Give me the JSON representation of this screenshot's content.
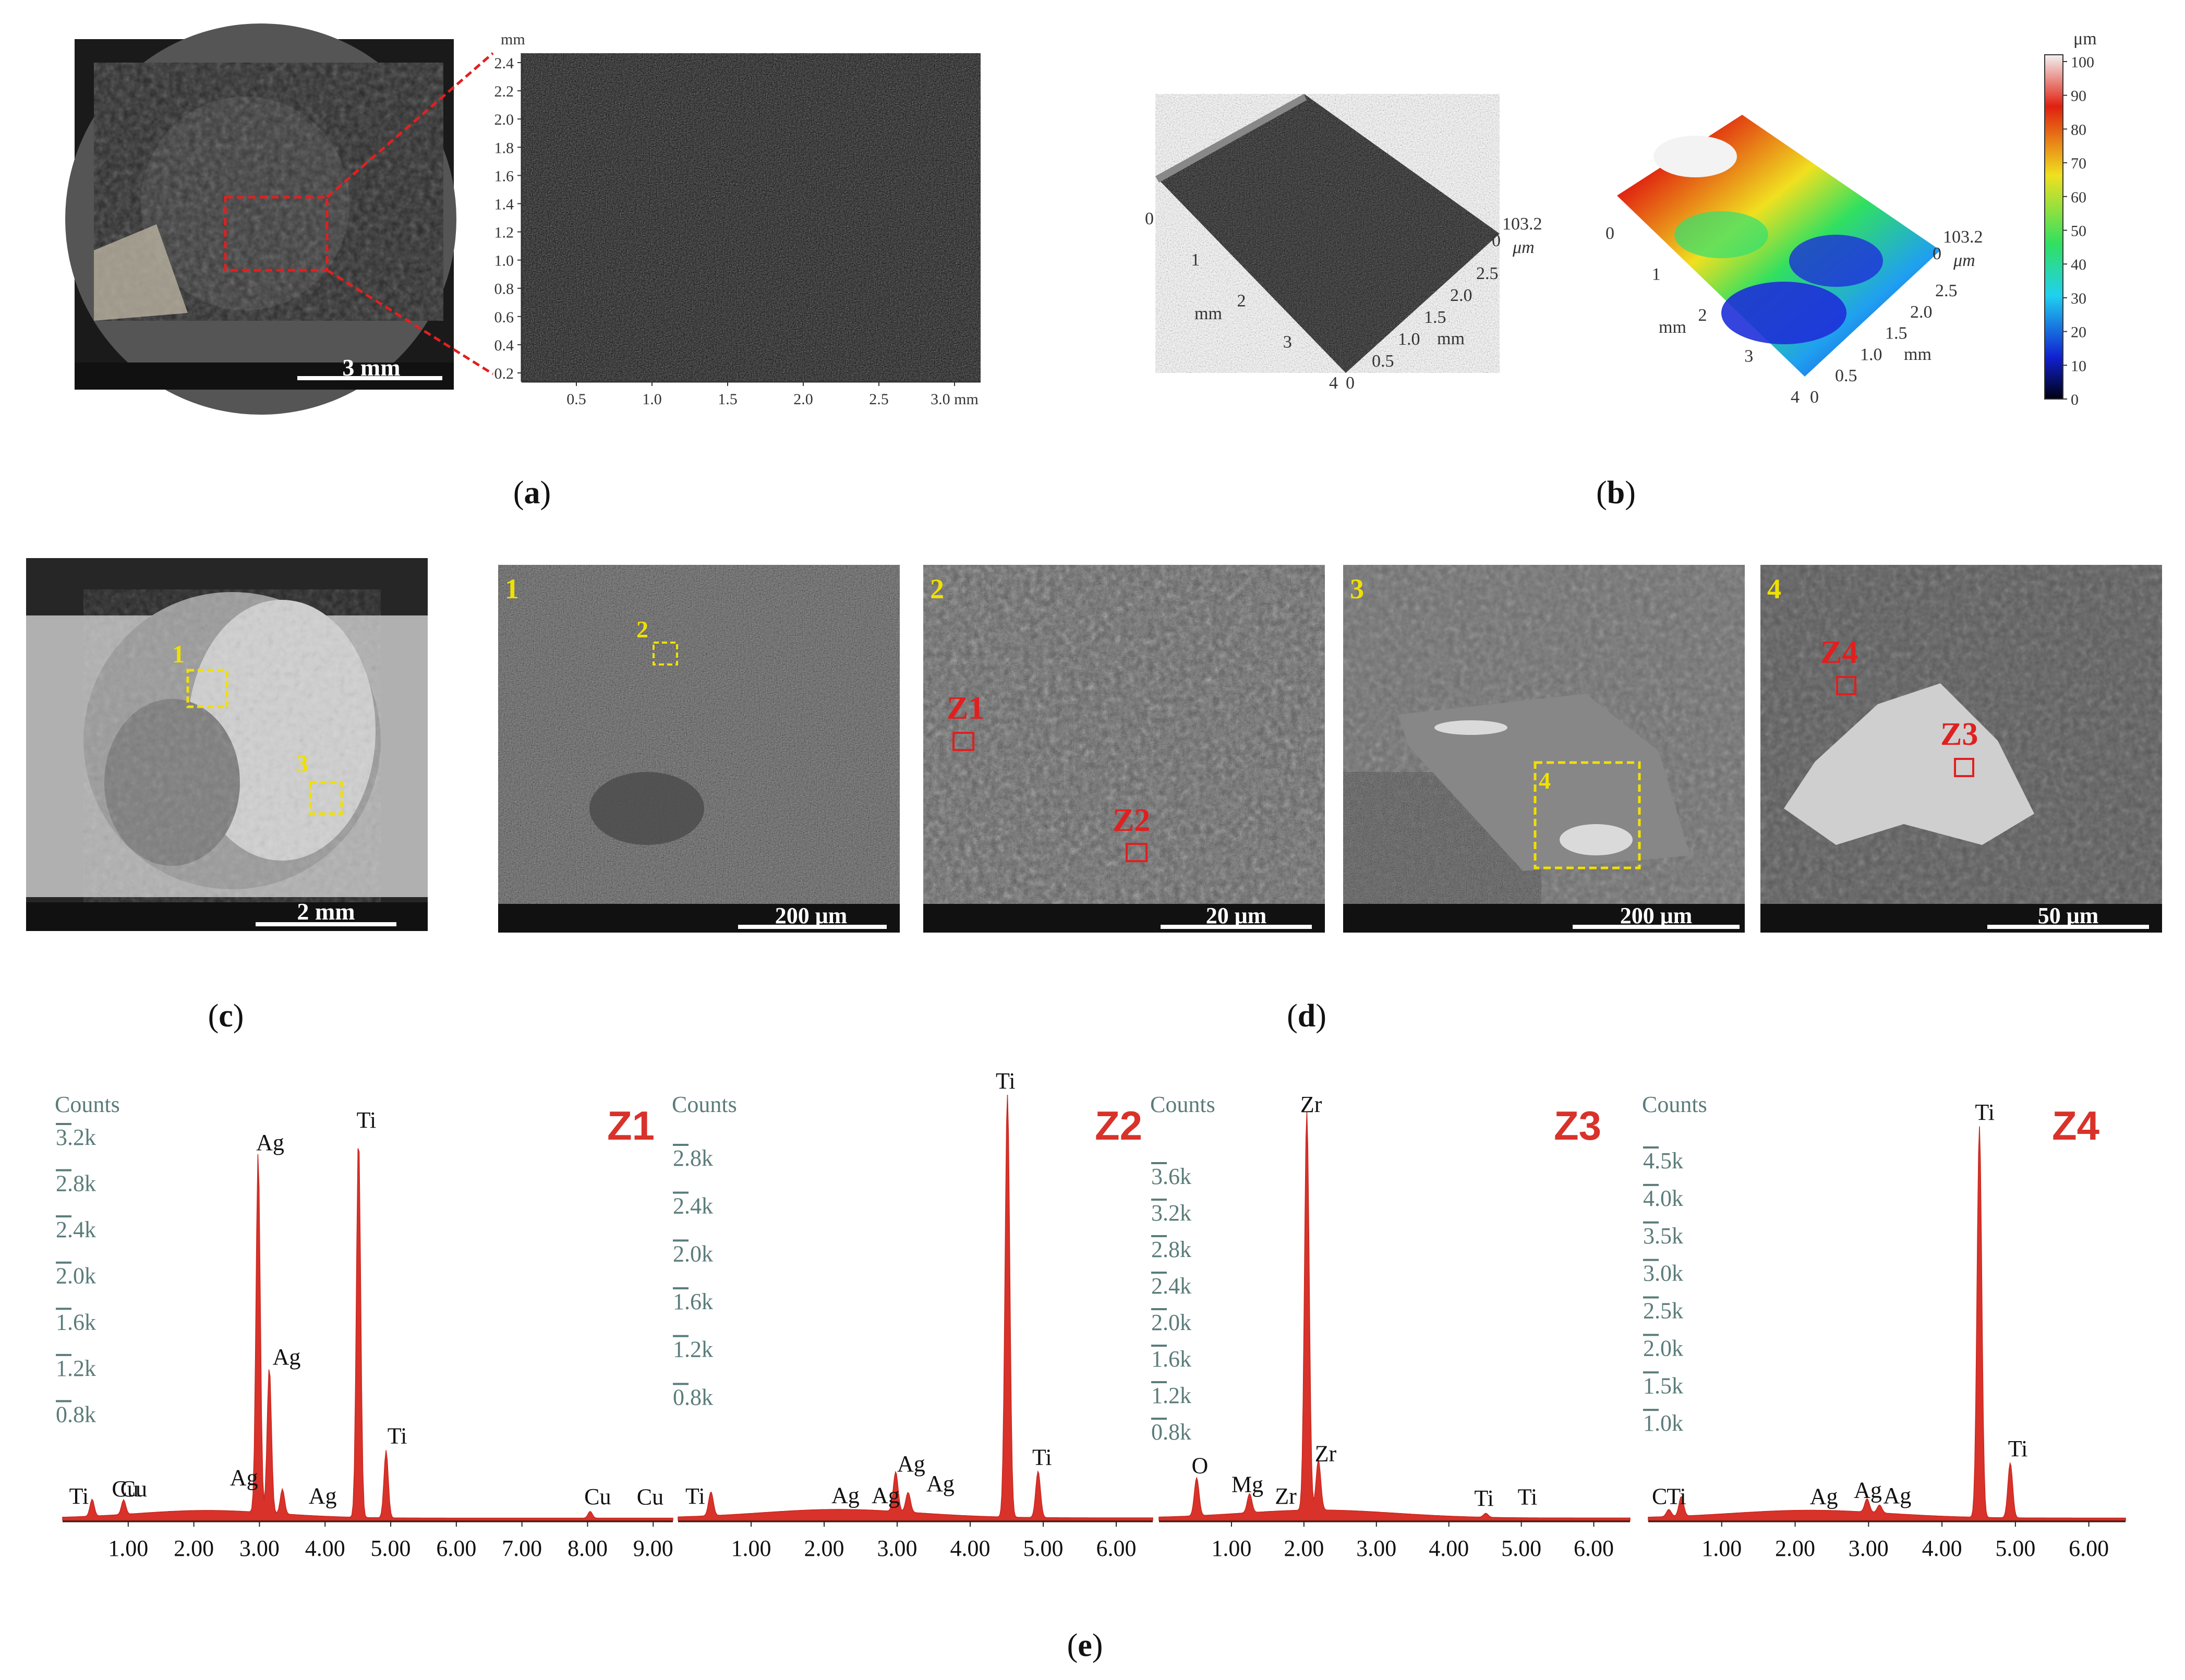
{
  "captions": {
    "a": "a",
    "b": "b",
    "c": "c",
    "d": "d",
    "e": "e"
  },
  "panel_a": {
    "photo_scale": "3 mm",
    "profile_y_unit": "mm",
    "profile_y_ticks": [
      "2.4",
      "2.2",
      "2.0",
      "1.8",
      "1.6",
      "1.4",
      "1.2",
      "1.0",
      "0.8",
      "0.6",
      "0.4",
      "0.2"
    ],
    "profile_x_ticks": [
      "0.5",
      "1.0",
      "1.5",
      "2.0",
      "2.5",
      "3.0 mm"
    ]
  },
  "panel_b": {
    "height_max": "103.2",
    "height_unit": "μm",
    "length_ticks": [
      "0",
      "1",
      "2",
      "3",
      "4"
    ],
    "length_unit": "mm",
    "width_ticks": [
      "0",
      "0.5",
      "1.0",
      "1.5",
      "2.0",
      "2.5"
    ],
    "width_unit": "mm",
    "colorbar_unit": "μm",
    "colorbar_ticks": [
      "100",
      "90",
      "80",
      "70",
      "60",
      "50",
      "40",
      "30",
      "20",
      "10",
      "0"
    ],
    "colors": {
      "high": "#f2f2f2",
      "red": "#e02010",
      "yellow": "#f0e020",
      "green": "#30e060",
      "cyan": "#20d0f0",
      "blue": "#1020d0",
      "low": "#000010"
    }
  },
  "panel_c": {
    "scale": "2 mm",
    "markers": [
      "1",
      "3"
    ]
  },
  "panel_d": {
    "images": [
      {
        "number": "1",
        "scale": "200 μm",
        "marker": "2"
      },
      {
        "number": "2",
        "scale": "20 μm",
        "zones": [
          "Z1",
          "Z2"
        ]
      },
      {
        "number": "3",
        "scale": "200 μm",
        "marker": "4"
      },
      {
        "number": "4",
        "scale": "50 μm",
        "zones": [
          "Z4",
          "Z3"
        ]
      }
    ]
  },
  "chart_data": [
    {
      "type": "line",
      "title": "Z1",
      "ylabel": "Counts",
      "y_ticks": [
        "3.2k",
        "2.8k",
        "2.4k",
        "2.0k",
        "1.6k",
        "1.2k",
        "0.8k"
      ],
      "x_ticks": [
        "1.00",
        "2.00",
        "3.00",
        "4.00",
        "5.00",
        "6.00",
        "7.00",
        "8.00",
        "9.00"
      ],
      "xlim": [
        0,
        9.3
      ],
      "peaks": [
        {
          "label": "Ti",
          "energy": 0.45,
          "counts": 150
        },
        {
          "label": "Cu",
          "energy": 0.93,
          "counts": 130
        },
        {
          "label": "Ag",
          "energy": 2.98,
          "counts": 3200
        },
        {
          "label": "Ag",
          "energy": 3.15,
          "counts": 1300
        },
        {
          "label": "Ag",
          "energy": 3.35,
          "counts": 220
        },
        {
          "label": "Ti",
          "energy": 4.51,
          "counts": 3400
        },
        {
          "label": "Ti",
          "energy": 4.93,
          "counts": 600
        },
        {
          "label": "Cu",
          "energy": 8.04,
          "counts": 60
        }
      ],
      "peak_labels": [
        {
          "text": "Ti",
          "energy": 0.1
        },
        {
          "text": "Cu",
          "energy": 0.75
        },
        {
          "text": "Cu",
          "energy": 0.88
        },
        {
          "text": "Ag",
          "energy": 2.55
        },
        {
          "text": "Ag",
          "energy": 2.95
        },
        {
          "text": "Ag",
          "energy": 3.2
        },
        {
          "text": "Ag",
          "energy": 3.75
        },
        {
          "text": "Ti",
          "energy": 4.48
        },
        {
          "text": "Ti",
          "energy": 4.95
        },
        {
          "text": "Cu",
          "energy": 7.95
        },
        {
          "text": "Cu",
          "energy": 8.75
        }
      ]
    },
    {
      "type": "line",
      "title": "Z2",
      "ylabel": "Counts",
      "y_ticks": [
        "2.8k",
        "2.4k",
        "2.0k",
        "1.6k",
        "1.2k",
        "0.8k"
      ],
      "x_ticks": [
        "1.00",
        "2.00",
        "3.00",
        "4.00",
        "5.00",
        "6.00"
      ],
      "xlim": [
        0,
        6.5
      ],
      "peaks": [
        {
          "label": "Ti",
          "energy": 0.45,
          "counts": 180
        },
        {
          "label": "Ag",
          "energy": 2.98,
          "counts": 300
        },
        {
          "label": "Ag",
          "energy": 3.15,
          "counts": 150
        },
        {
          "label": "Ti",
          "energy": 4.51,
          "counts": 3200
        },
        {
          "label": "Ti",
          "energy": 4.93,
          "counts": 350
        }
      ],
      "peak_labels": [
        {
          "text": "Ti",
          "energy": 0.1
        },
        {
          "text": "Ag",
          "energy": 2.1
        },
        {
          "text": "Ag",
          "energy": 2.65
        },
        {
          "text": "Ag",
          "energy": 3.0
        },
        {
          "text": "Ag",
          "energy": 3.4
        },
        {
          "text": "Ti",
          "energy": 4.35
        },
        {
          "text": "Ti",
          "energy": 4.85
        }
      ]
    },
    {
      "type": "line",
      "title": "Z3",
      "ylabel": "Counts",
      "y_ticks": [
        "3.6k",
        "3.2k",
        "2.8k",
        "2.4k",
        "2.0k",
        "1.6k",
        "1.2k",
        "0.8k"
      ],
      "x_ticks": [
        "1.00",
        "2.00",
        "3.00",
        "4.00",
        "5.00",
        "6.00"
      ],
      "xlim": [
        0,
        6.5
      ],
      "peaks": [
        {
          "label": "O",
          "energy": 0.52,
          "counts": 380
        },
        {
          "label": "Mg",
          "energy": 1.25,
          "counts": 190
        },
        {
          "label": "Zr",
          "energy": 2.04,
          "counts": 4000
        },
        {
          "label": "Zr",
          "energy": 2.2,
          "counts": 500
        },
        {
          "label": "Ti",
          "energy": 4.51,
          "counts": 40
        }
      ],
      "peak_labels": [
        {
          "text": "O",
          "energy": 0.45
        },
        {
          "text": "Mg",
          "energy": 1.0
        },
        {
          "text": "Zr",
          "energy": 1.6
        },
        {
          "text": "Zr",
          "energy": 1.95
        },
        {
          "text": "Zr",
          "energy": 2.15
        },
        {
          "text": "Ti",
          "energy": 4.35
        },
        {
          "text": "Ti",
          "energy": 4.95
        }
      ]
    },
    {
      "type": "line",
      "title": "Z4",
      "ylabel": "Counts",
      "y_ticks": [
        "4.5k",
        "4.0k",
        "3.5k",
        "3.0k",
        "2.5k",
        "2.0k",
        "1.5k",
        "1.0k"
      ],
      "x_ticks": [
        "1.00",
        "2.00",
        "3.00",
        "4.00",
        "5.00",
        "6.00"
      ],
      "xlim": [
        0,
        6.5
      ],
      "peaks": [
        {
          "label": "C",
          "energy": 0.28,
          "counts": 90
        },
        {
          "label": "Ti",
          "energy": 0.45,
          "counts": 250
        },
        {
          "label": "Ag",
          "energy": 2.98,
          "counts": 170
        },
        {
          "label": "Ag",
          "energy": 3.15,
          "counts": 100
        },
        {
          "label": "Ti",
          "energy": 4.51,
          "counts": 5000
        },
        {
          "label": "Ti",
          "energy": 4.93,
          "counts": 700
        }
      ],
      "peak_labels": [
        {
          "text": "C",
          "energy": 0.05
        },
        {
          "text": "Ti",
          "energy": 0.25
        },
        {
          "text": "Ag",
          "energy": 2.2
        },
        {
          "text": "Ag",
          "energy": 2.8
        },
        {
          "text": "Ag",
          "energy": 3.2
        },
        {
          "text": "Ti",
          "energy": 4.45
        },
        {
          "text": "Ti",
          "energy": 4.9
        }
      ]
    }
  ]
}
